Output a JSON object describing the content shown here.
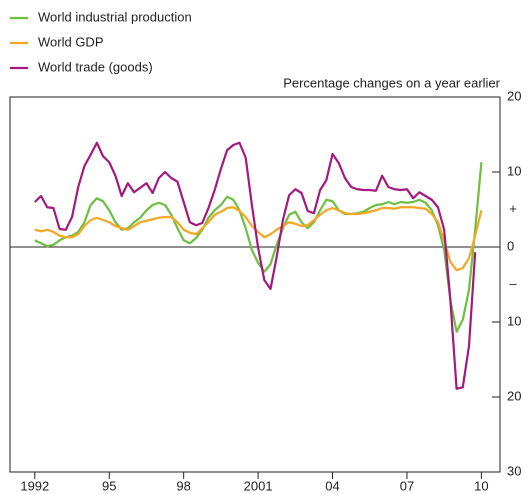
{
  "chart_data": {
    "type": "line",
    "legend": "top-left",
    "y_axis_label": "Percentage changes on a year earlier",
    "annotations": [
      "+",
      "–"
    ],
    "x": [
      1992,
      1992.25,
      1992.5,
      1992.75,
      1993,
      1993.25,
      1993.5,
      1993.75,
      1994,
      1994.25,
      1994.5,
      1994.75,
      1995,
      1995.25,
      1995.5,
      1995.75,
      1996,
      1996.25,
      1996.5,
      1996.75,
      1997,
      1997.25,
      1997.5,
      1997.75,
      1998,
      1998.25,
      1998.5,
      1998.75,
      1999,
      1999.25,
      1999.5,
      1999.75,
      2000,
      2000.25,
      2000.5,
      2000.75,
      2001,
      2001.25,
      2001.5,
      2001.75,
      2002,
      2002.25,
      2002.5,
      2002.75,
      2003,
      2003.25,
      2003.5,
      2003.75,
      2004,
      2004.25,
      2004.5,
      2004.75,
      2005,
      2005.25,
      2005.5,
      2005.75,
      2006,
      2006.25,
      2006.5,
      2006.75,
      2007,
      2007.25,
      2007.5,
      2007.75,
      2008,
      2008.25,
      2008.5,
      2008.75,
      2009,
      2009.25,
      2009.5,
      2009.75,
      2010
    ],
    "series": [
      {
        "name": "World industrial production",
        "color": "#6cbf3f",
        "values": [
          0.9,
          0.5,
          0.1,
          0.3,
          0.9,
          1.3,
          1.5,
          2,
          3.3,
          5.6,
          6.5,
          6.1,
          4.9,
          3.3,
          2.3,
          2.5,
          3.3,
          3.9,
          4.9,
          5.6,
          5.9,
          5.6,
          4.3,
          2.5,
          0.9,
          0.5,
          1.2,
          2.3,
          3.9,
          4.9,
          5.6,
          6.7,
          6.3,
          4.9,
          2.5,
          -0.4,
          -2.1,
          -3.3,
          -2.3,
          0.3,
          2.5,
          4.3,
          4.7,
          3.3,
          2.5,
          3.3,
          4.9,
          6.3,
          6.1,
          4.9,
          4.4,
          4.4,
          4.5,
          4.7,
          5.2,
          5.6,
          5.7,
          6,
          5.7,
          6,
          5.9,
          6,
          6.3,
          5.9,
          4.9,
          2.9,
          -0.4,
          -7.1,
          -11.3,
          -9.7,
          -5.7,
          2.3,
          11.3
        ]
      },
      {
        "name": "World GDP",
        "color": "#f5a623",
        "values": [
          2.3,
          2.1,
          2.3,
          2,
          1.5,
          1.3,
          1.3,
          1.7,
          2.8,
          3.6,
          3.9,
          3.6,
          3.3,
          2.8,
          2.5,
          2.3,
          2.8,
          3.3,
          3.5,
          3.7,
          3.9,
          4,
          4,
          3.3,
          2.3,
          1.9,
          1.7,
          2.5,
          3.3,
          4.3,
          4.7,
          5.2,
          5.3,
          4.8,
          4,
          2.8,
          2,
          1.3,
          1.7,
          2.3,
          2.8,
          3.3,
          3.1,
          2.8,
          2.9,
          3.6,
          4.3,
          4.9,
          5.2,
          4.9,
          4.5,
          4.4,
          4.4,
          4.5,
          4.7,
          4.9,
          5.2,
          5.2,
          5.1,
          5.3,
          5.3,
          5.3,
          5.2,
          5.1,
          4.4,
          3.3,
          0.9,
          -2,
          -3.1,
          -2.8,
          -1.5,
          1.5,
          4.9
        ]
      },
      {
        "name": "World trade (goods)",
        "color": "#a3197f",
        "values": [
          6,
          6.8,
          5.3,
          5.2,
          2.4,
          2.3,
          4,
          8,
          10.8,
          12.3,
          13.9,
          12.1,
          11.3,
          9.5,
          6.8,
          8.5,
          7.3,
          7.9,
          8.5,
          7.2,
          9.2,
          10,
          9.2,
          8.7,
          6,
          3.3,
          2.9,
          3.2,
          5.2,
          7.6,
          10.4,
          12.9,
          13.6,
          13.9,
          11.9,
          5.6,
          -0.1,
          -4.4,
          -5.6,
          -1.3,
          3.6,
          6.9,
          7.7,
          7.2,
          4.8,
          4.5,
          7.6,
          8.9,
          12.4,
          11.2,
          9.2,
          8,
          7.7,
          7.6,
          7.6,
          7.5,
          9.5,
          8,
          7.7,
          7.6,
          7.7,
          6.5,
          7.3,
          6.8,
          6.3,
          5.3,
          2.3,
          -7.1,
          -18.9,
          -18.7,
          -13.2,
          -0.7,
          null
        ]
      }
    ],
    "xlim": [
      1991,
      2010.75
    ],
    "xticks": [
      1992,
      {
        "value": 1995,
        "label": "95"
      },
      {
        "value": 1998,
        "label": "98"
      },
      2001,
      {
        "value": 2004,
        "label": "04"
      },
      {
        "value": 2007,
        "label": "07"
      },
      {
        "value": 2010,
        "label": "10"
      }
    ],
    "ylim": [
      -30,
      20
    ],
    "yticks": [
      20,
      10,
      0,
      {
        "value": -10,
        "label": "10"
      },
      {
        "value": -20,
        "label": "20"
      },
      {
        "value": -30,
        "label": "30"
      }
    ],
    "grid": false
  }
}
